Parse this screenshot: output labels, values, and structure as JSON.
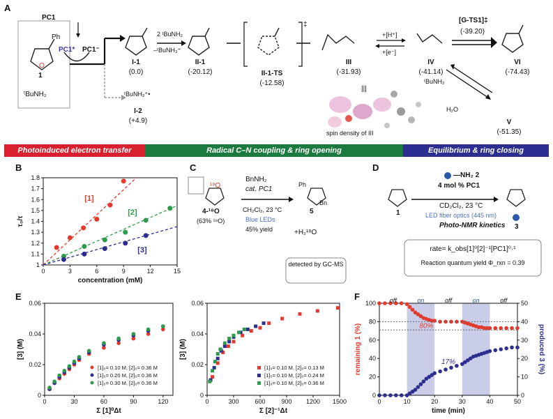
{
  "panels": {
    "A": "A",
    "B": "B",
    "C": "C",
    "D": "D",
    "E": "E",
    "F": "F"
  },
  "panelA": {
    "compound1": "1",
    "compound1_sub": "Ph",
    "amine": "ᵗBuNH₂",
    "pc1": "PC1",
    "pc1_star": "PC1*",
    "pc1_minus": "PC1⁻",
    "reagent_top": "2 ᵗBuNH₂",
    "reagent_bottom": "–ᵗBuNH₃⁺",
    "ts_mark": "‡",
    "h_plus": "+[H⁺]",
    "e_minus": "+[e⁻]",
    "gts1": "[G-TS1]‡",
    "gts1_energy": "(-39.20)",
    "tbunh2_side": "ᵗBuNH₂",
    "h2o": "H₂O",
    "spin_label": "spin density of III",
    "i2_radical": "ᵗBuNH₂⁺•",
    "species": [
      {
        "name": "I-1",
        "energy": "(0.0)"
      },
      {
        "name": "II-1",
        "energy": "(-20.12)"
      },
      {
        "name": "II-1-TS",
        "energy": "(-12.58)"
      },
      {
        "name": "III",
        "energy": "(-31.93)"
      },
      {
        "name": "IV",
        "energy": "(-41.14)"
      },
      {
        "name": "VI",
        "energy": "(-74.43)"
      },
      {
        "name": "V",
        "energy": "(-51.35)"
      },
      {
        "name": "I-2",
        "energy": "(+4.9)"
      }
    ],
    "bars": [
      {
        "label": "Photoinduced electron transfer",
        "color": "#d8202f"
      },
      {
        "label": "Radical C–N coupling & ring opening",
        "color": "#1b7a3e"
      },
      {
        "label": "Equilibrium & ring closing",
        "color": "#2c2f8f"
      }
    ]
  },
  "panelC": {
    "reagent1": "BnNH₂",
    "reagent2": "cat. PC1",
    "cond1": "CH₂Cl₂, 23 °C",
    "cond2": "Blue LEDs",
    "cond3": "45% yield",
    "sm": "4-¹⁸O",
    "sm_sub": "(63% ¹⁸O)",
    "product": "5",
    "byproduct": "+H₂¹⁸O",
    "detected": "detected by GC-MS",
    "iso": "¹⁸O",
    "ph": "Ph",
    "bn": "Bn"
  },
  "panelD": {
    "reagent": "—NH₂ 2",
    "loading": "4 mol % PC1",
    "solvent": "CD₂Cl₂, 23 °C",
    "led": "LED fiber optics (445 nm)",
    "kinetics": "Photo-NMR kinetics",
    "sm": "1",
    "product": "3",
    "rate": "rate= k_obs[1]⁰[2]⁻¹[PC1]⁰·¹",
    "quantum": "Reaction quantum yield Φ_rxn = 0.39"
  },
  "chart_data": [
    {
      "type": "scatter",
      "id": "B",
      "xlabel": "concentration (mM)",
      "ylabel": "τ₀/τ",
      "xlim": [
        0,
        15
      ],
      "ylim": [
        1.0,
        1.8
      ],
      "xticks": [
        0,
        3,
        6,
        9,
        12,
        15
      ],
      "yticks": [
        1.0,
        1.1,
        1.2,
        1.3,
        1.4,
        1.5,
        1.6,
        1.7,
        1.8
      ],
      "series": [
        {
          "name": "[1]",
          "color": "#e23a2e",
          "x": [
            1.5,
            3,
            4.5,
            6,
            7.5,
            9
          ],
          "y": [
            1.16,
            1.25,
            1.34,
            1.42,
            1.55,
            1.77
          ]
        },
        {
          "name": "[2]",
          "color": "#2e9a4b",
          "x": [
            2.3,
            4.6,
            6.9,
            9.2,
            11.5,
            14.2
          ],
          "y": [
            1.08,
            1.17,
            1.23,
            1.3,
            1.41,
            1.52
          ]
        },
        {
          "name": "[3]",
          "color": "#2c2f8f",
          "x": [
            2.3,
            4.6,
            6.9,
            9.2,
            11.5
          ],
          "y": [
            1.05,
            1.1,
            1.15,
            1.2,
            1.27
          ]
        }
      ]
    },
    {
      "type": "scatter",
      "id": "E1",
      "xlabel": "Σ [1]⁰Δt",
      "ylabel": "[3] (M)",
      "xlim": [
        0,
        130
      ],
      "ylim": [
        0,
        0.06
      ],
      "xticks": [
        0,
        30,
        60,
        90,
        120
      ],
      "yticks": [
        0,
        0.02,
        0.04,
        0.06
      ],
      "series": [
        {
          "name": "[1]₀= 0.10 M, [2]₀= 0.36 M",
          "color": "#e23a2e",
          "x": [
            5,
            10,
            15,
            20,
            25,
            30,
            35,
            45,
            60,
            75,
            90,
            105,
            120
          ],
          "y": [
            0.004,
            0.008,
            0.011,
            0.014,
            0.017,
            0.02,
            0.023,
            0.027,
            0.031,
            0.034,
            0.037,
            0.04,
            0.043
          ]
        },
        {
          "name": "[1]₀= 0.20 M, [2]₀= 0.36 M",
          "color": "#2c2f8f",
          "x": [
            5,
            10,
            15,
            20,
            25,
            30,
            35,
            45,
            60,
            75,
            90,
            105,
            120
          ],
          "y": [
            0.004,
            0.008,
            0.012,
            0.015,
            0.018,
            0.021,
            0.024,
            0.028,
            0.033,
            0.036,
            0.039,
            0.042,
            0.045
          ]
        },
        {
          "name": "[1]₀= 0.30 M, [2]₀= 0.36 M",
          "color": "#2e9a4b",
          "x": [
            5,
            10,
            15,
            20,
            25,
            30,
            35,
            45,
            60,
            75,
            90,
            105,
            120
          ],
          "y": [
            0.005,
            0.009,
            0.013,
            0.016,
            0.019,
            0.022,
            0.025,
            0.029,
            0.034,
            0.037,
            0.04,
            0.043,
            0.045
          ]
        }
      ]
    },
    {
      "type": "scatter",
      "id": "E2",
      "xlabel": "Σ [2]⁻¹Δt",
      "ylabel": "[3] (M)",
      "xlim": [
        0,
        1500
      ],
      "ylim": [
        0,
        0.06
      ],
      "xticks": [
        0,
        300,
        600,
        900,
        1200,
        1500
      ],
      "yticks": [
        0,
        0.02,
        0.04,
        0.06
      ],
      "series": [
        {
          "name": "[1]₀= 0.10 M, [2]₀= 0.13 M",
          "color": "#e23a2e",
          "x": [
            60,
            120,
            180,
            240,
            300,
            400,
            500,
            600,
            700,
            850,
            1050,
            1250,
            1480
          ],
          "y": [
            0.012,
            0.021,
            0.028,
            0.032,
            0.035,
            0.039,
            0.042,
            0.044,
            0.047,
            0.05,
            0.053,
            0.055,
            0.057
          ]
        },
        {
          "name": "[1]₀= 0.10 M, [2]₀= 0.24 M",
          "color": "#2c2f8f",
          "x": [
            40,
            80,
            120,
            160,
            200,
            250,
            300,
            380,
            460,
            550,
            640
          ],
          "y": [
            0.01,
            0.018,
            0.024,
            0.029,
            0.032,
            0.035,
            0.038,
            0.041,
            0.043,
            0.045,
            0.047
          ]
        },
        {
          "name": "[1]₀= 0.10 M, [2]₀= 0.36 M",
          "color": "#2e9a4b",
          "x": [
            30,
            60,
            90,
            120,
            150,
            200,
            250,
            300,
            360,
            420
          ],
          "y": [
            0.009,
            0.016,
            0.022,
            0.027,
            0.03,
            0.034,
            0.037,
            0.039,
            0.041,
            0.043
          ]
        }
      ]
    },
    {
      "type": "scatter",
      "id": "F",
      "xlabel": "time (min)",
      "ylabel": "remaining 1 (%)",
      "ylabel_right": "produced 3 (%)",
      "xlim": [
        0,
        50
      ],
      "ylim": [
        0,
        100
      ],
      "ylim_right": [
        0,
        50
      ],
      "xticks": [
        0,
        10,
        20,
        30,
        40,
        50
      ],
      "yticks": [
        0,
        20,
        40,
        60,
        80,
        100
      ],
      "yticks_right": [
        0,
        10,
        20,
        30,
        40,
        50
      ],
      "shaded": [
        [
          10,
          20
        ],
        [
          30,
          40
        ]
      ],
      "phases": [
        "off",
        "on",
        "off",
        "on",
        "off"
      ],
      "annotations": [
        "80%",
        "17%"
      ],
      "series": [
        {
          "name": "remaining 1",
          "color": "#e23a2e",
          "axis": "left",
          "x": [
            0,
            2,
            4,
            6,
            8,
            10,
            11,
            12,
            13,
            14,
            15,
            16,
            17,
            18,
            19,
            20,
            22,
            24,
            26,
            28,
            30,
            31,
            32,
            33,
            34,
            35,
            36,
            37,
            38,
            39,
            40,
            42,
            44,
            46,
            48,
            50
          ],
          "y": [
            100,
            100,
            100,
            100,
            100,
            99,
            96,
            93,
            90,
            88,
            86,
            84,
            83,
            82,
            81,
            81,
            80,
            80,
            80,
            80,
            80,
            79,
            78,
            77,
            76,
            75,
            74,
            74,
            73,
            73,
            73,
            73,
            73,
            73,
            73,
            73
          ]
        },
        {
          "name": "produced 3",
          "color": "#2c2f8f",
          "axis": "right",
          "x": [
            0,
            2,
            4,
            6,
            8,
            10,
            11,
            12,
            13,
            14,
            15,
            16,
            17,
            18,
            19,
            20,
            22,
            24,
            26,
            28,
            30,
            31,
            32,
            33,
            34,
            35,
            36,
            37,
            38,
            39,
            40,
            42,
            44,
            46,
            48,
            50
          ],
          "y": [
            0,
            0,
            0,
            0,
            0,
            0,
            1,
            2,
            3,
            4.5,
            6,
            7.5,
            9,
            10,
            11,
            12,
            13,
            14,
            15,
            16,
            17,
            18,
            19,
            20,
            21,
            21.5,
            22,
            22.5,
            23,
            23.5,
            24,
            24.5,
            25,
            25.5,
            26,
            26
          ]
        }
      ]
    }
  ]
}
